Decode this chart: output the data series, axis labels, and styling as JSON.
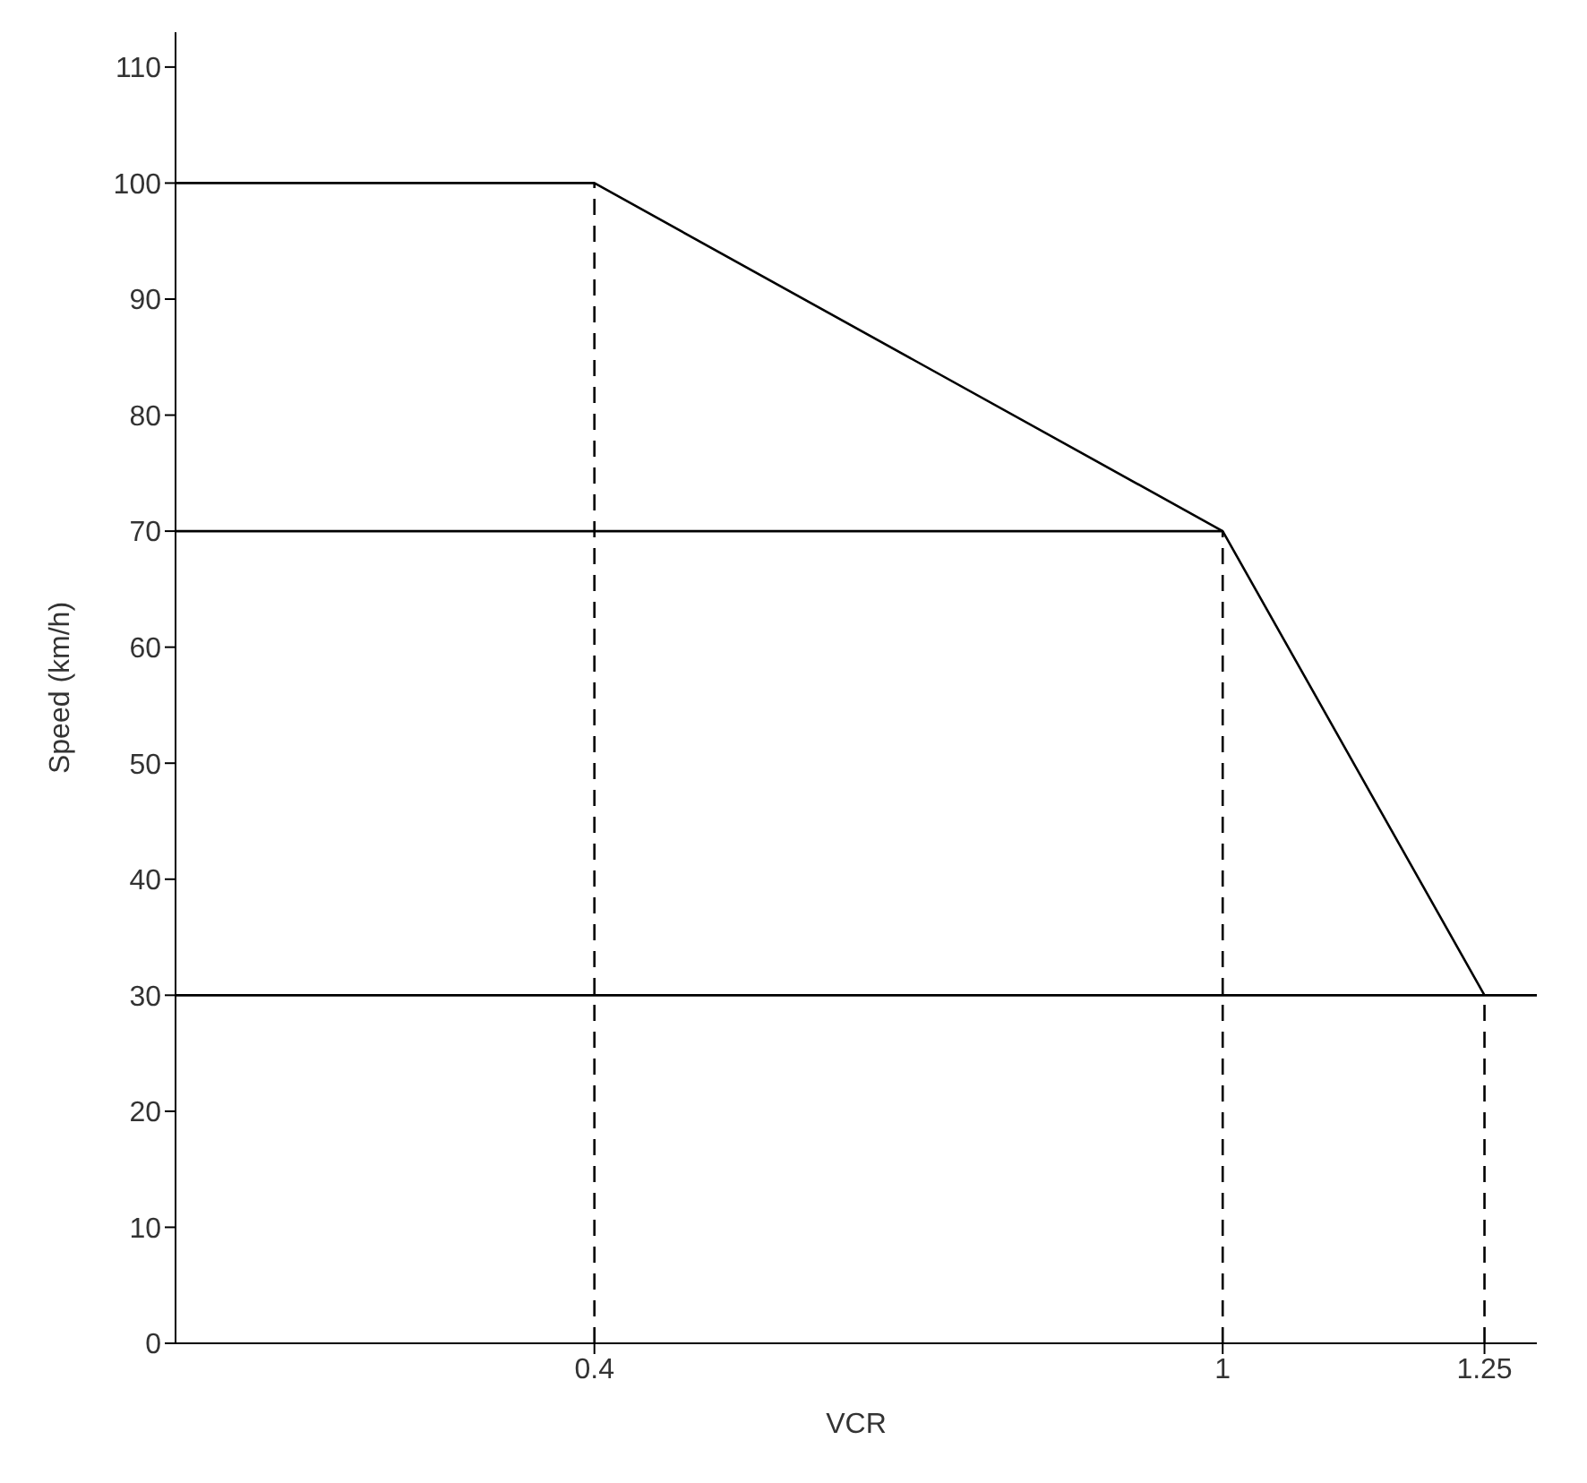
{
  "chart_data": {
    "type": "line",
    "xlabel": "VCR",
    "ylabel": "Speed (km/h)",
    "series": [
      {
        "color": "#000000",
        "x": [
          0,
          0.4,
          1,
          1.25
        ],
        "values": [
          100,
          100,
          70,
          30
        ]
      },
      {
        "color": "#000000",
        "x": [
          0,
          1
        ],
        "values": [
          70,
          70
        ]
      },
      {
        "color": "#000000",
        "x": [
          0.4,
          0.4
        ],
        "values": [
          0,
          100
        ],
        "line_style": "dashed"
      },
      {
        "color": "#000000",
        "x": [
          1,
          1
        ],
        "values": [
          0,
          70
        ],
        "line_style": "dashed"
      },
      {
        "color": "#000000",
        "x": [
          1.25,
          1.25
        ],
        "values": [
          0,
          30
        ],
        "line_style": "dashed"
      }
    ],
    "ref_lines": [
      {
        "axis": "y",
        "value": 30,
        "color": "#000000"
      }
    ],
    "xlim": [
      0,
      1.3
    ],
    "xticks": [
      0.4,
      1,
      1.25
    ],
    "ylim": [
      0,
      113
    ],
    "yticks": [
      0,
      10,
      20,
      30,
      40,
      50,
      60,
      70,
      80,
      90,
      100,
      110
    ],
    "marker": "none",
    "line_style": "solid"
  }
}
